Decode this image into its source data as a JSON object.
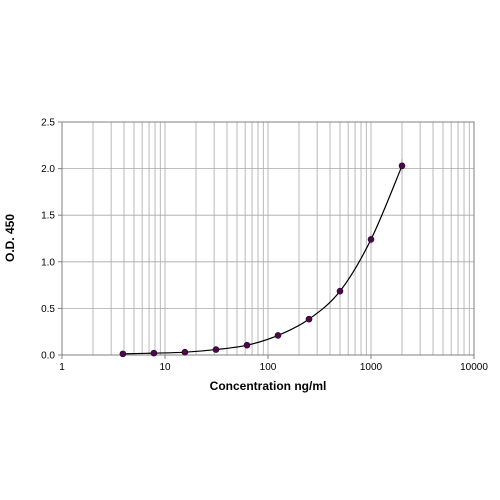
{
  "chart_data": {
    "type": "scatter",
    "title": "",
    "xlabel": "Concentration ng/ml",
    "ylabel": "O.D. 450",
    "x_scale": "log",
    "xlim": [
      1,
      10000
    ],
    "ylim": [
      0,
      2.5
    ],
    "x_tick_labels": [
      "1",
      "10",
      "100",
      "1000",
      "10000"
    ],
    "y_tick_labels": [
      "0.0",
      "0.5",
      "1.0",
      "1.5",
      "2.0",
      "2.5"
    ],
    "grid": true,
    "legend": "none",
    "series": [
      {
        "x": [
          3.9,
          7.8,
          15.6,
          31.25,
          62.5,
          125,
          250,
          500,
          1000,
          2000
        ],
        "y": [
          0.012,
          0.02,
          0.03,
          0.058,
          0.105,
          0.21,
          0.385,
          0.685,
          1.24,
          2.03
        ],
        "marker_color": "#4a0a4a",
        "line_color": "#000000",
        "fit": "smooth curve"
      }
    ]
  }
}
